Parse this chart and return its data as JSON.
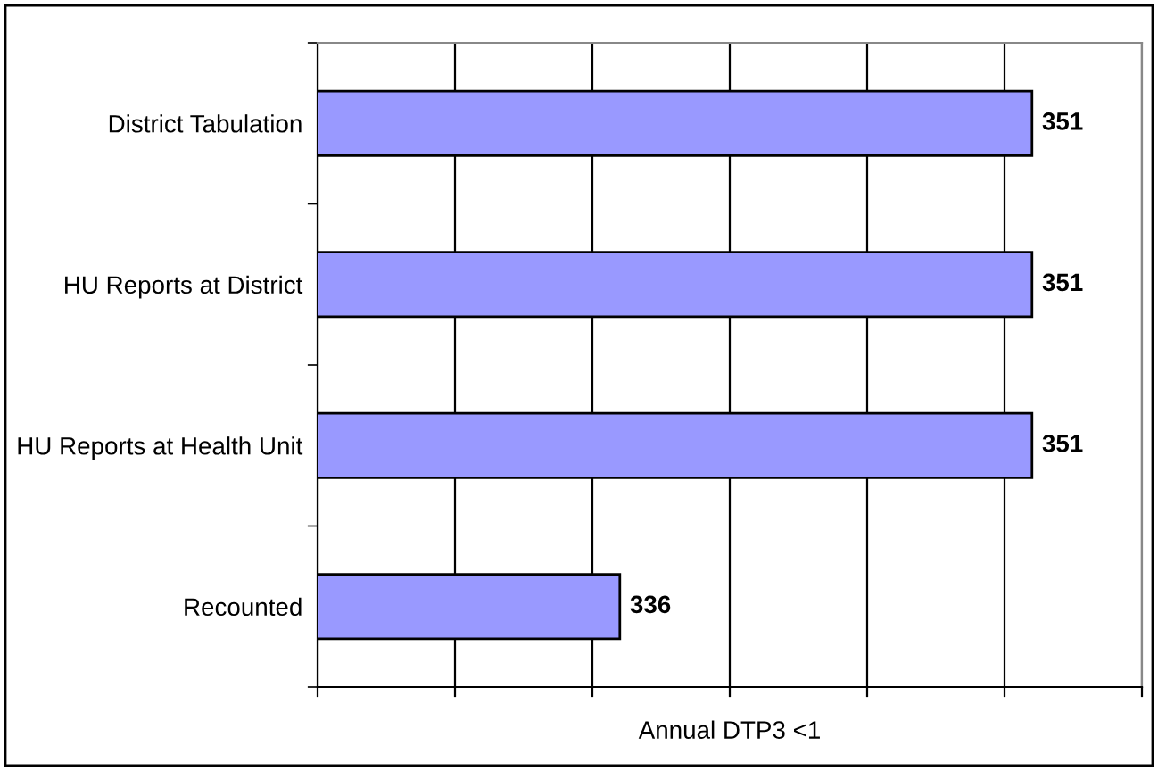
{
  "chart_data": {
    "type": "bar",
    "orientation": "horizontal",
    "xlabel": "Annual DTP3 <1",
    "categories": [
      "District Tabulation",
      "HU Reports at District",
      "HU Reports at Health Unit",
      "Recounted"
    ],
    "values": [
      351,
      351,
      351,
      336
    ],
    "color": "#9999ff",
    "data_labels": true,
    "xlim": [
      325,
      355
    ],
    "xticks": [
      {
        "value": 325,
        "label": null
      },
      {
        "value": 330,
        "label": null
      },
      {
        "value": 335,
        "label": null
      },
      {
        "value": 340,
        "label": null
      },
      {
        "value": 345,
        "label": null
      },
      {
        "value": 350,
        "label": null
      },
      {
        "value": 355,
        "label": null
      }
    ],
    "grid": "x",
    "legend": false
  }
}
